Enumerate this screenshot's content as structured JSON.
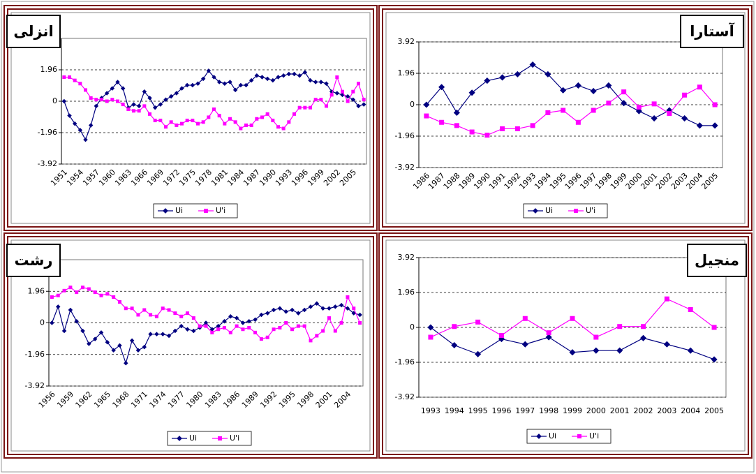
{
  "chart_data": [
    {
      "type": "line",
      "title": "انزلی",
      "categories": [
        "1951",
        null,
        null,
        "1954",
        null,
        null,
        "1957",
        null,
        null,
        "1960",
        null,
        null,
        "1963",
        null,
        null,
        "1966",
        null,
        null,
        "1969",
        null,
        null,
        "1972",
        null,
        null,
        "1975",
        null,
        null,
        "1978",
        null,
        null,
        "1981",
        null,
        null,
        "1984",
        null,
        null,
        "1987",
        null,
        null,
        "1990",
        null,
        null,
        "1993",
        null,
        null,
        "1996",
        null,
        null,
        "1999",
        null,
        null,
        "2002",
        null,
        null,
        "2005",
        null,
        null
      ],
      "series": [
        {
          "name": "Ui",
          "color": "#000080",
          "values": [
            0,
            -0.9,
            -1.4,
            -1.8,
            -2.4,
            -1.5,
            -0.3,
            0.2,
            0.5,
            0.8,
            1.2,
            0.8,
            -0.4,
            -0.2,
            -0.3,
            0.6,
            0.2,
            -0.4,
            -0.2,
            0.1,
            0.3,
            0.5,
            0.8,
            1.0,
            1.0,
            1.1,
            1.4,
            1.9,
            1.5,
            1.2,
            1.1,
            1.2,
            0.7,
            1.0,
            1.0,
            1.3,
            1.6,
            1.5,
            1.4,
            1.3,
            1.5,
            1.6,
            1.7,
            1.7,
            1.6,
            1.8,
            1.3,
            1.2,
            1.2,
            1.1,
            0.6,
            0.5,
            0.4,
            0.3,
            0.1,
            -0.3,
            -0.2
          ]
        },
        {
          "name": "U'i",
          "color": "#ff00ff",
          "values": [
            1.5,
            1.5,
            1.3,
            1.1,
            0.7,
            0.2,
            0.1,
            0.1,
            0.0,
            0.1,
            0.0,
            -0.2,
            -0.5,
            -0.6,
            -0.6,
            -0.3,
            -0.8,
            -1.2,
            -1.2,
            -1.6,
            -1.3,
            -1.5,
            -1.4,
            -1.2,
            -1.2,
            -1.4,
            -1.3,
            -1.0,
            -0.5,
            -0.9,
            -1.4,
            -1.1,
            -1.3,
            -1.7,
            -1.5,
            -1.5,
            -1.1,
            -1.0,
            -0.8,
            -1.2,
            -1.6,
            -1.7,
            -1.3,
            -0.8,
            -0.4,
            -0.4,
            -0.4,
            0.1,
            0.1,
            -0.3,
            0.4,
            1.5,
            0.6,
            0.0,
            0.6,
            1.1,
            0.1
          ]
        }
      ],
      "ylim": [
        -3.92,
        3.92
      ],
      "yticks": [
        -3.92,
        -1.96,
        0,
        1.96
      ]
    },
    {
      "type": "line",
      "title": "آستارا",
      "categories": [
        "1986",
        "1987",
        "1988",
        "1989",
        "1990",
        "1991",
        "1992",
        "1993",
        "1994",
        "1995",
        "1996",
        "1997",
        "1998",
        "1999",
        "2000",
        "2001",
        "2002",
        "2003",
        "2004",
        "2005"
      ],
      "series": [
        {
          "name": "Ui",
          "color": "#000080",
          "values": [
            0,
            1.1,
            -0.5,
            0.75,
            1.5,
            1.7,
            1.9,
            2.5,
            1.9,
            0.9,
            1.2,
            0.85,
            1.2,
            0.1,
            -0.4,
            -0.85,
            -0.35,
            -0.85,
            -1.3,
            -1.3
          ]
        },
        {
          "name": "U'i",
          "color": "#ff00ff",
          "values": [
            -0.7,
            -1.1,
            -1.3,
            -1.7,
            -1.9,
            -1.5,
            -1.5,
            -1.3,
            -0.5,
            -0.35,
            -1.1,
            -0.35,
            0.1,
            0.8,
            -0.15,
            0.05,
            -0.55,
            0.6,
            1.1,
            0.0
          ]
        }
      ],
      "ylim": [
        -3.92,
        3.92
      ],
      "yticks": [
        -3.92,
        -1.96,
        0,
        1.96,
        3.92
      ]
    },
    {
      "type": "line",
      "title": "رشت",
      "categories": [
        "1956",
        null,
        null,
        "1959",
        null,
        null,
        "1962",
        null,
        null,
        "1965",
        null,
        null,
        "1968",
        null,
        null,
        "1971",
        null,
        null,
        "1974",
        null,
        null,
        "1977",
        null,
        null,
        "1980",
        null,
        null,
        "1983",
        null,
        null,
        "1986",
        null,
        null,
        "1989",
        null,
        null,
        "1992",
        null,
        null,
        "1995",
        null,
        null,
        "1998",
        null,
        null,
        "2001",
        null,
        null,
        "2004",
        null,
        null
      ],
      "series": [
        {
          "name": "Ui",
          "color": "#000080",
          "values": [
            0,
            1.0,
            -0.5,
            0.8,
            0.1,
            -0.5,
            -1.3,
            -1.0,
            -0.6,
            -1.2,
            -1.7,
            -1.4,
            -2.5,
            -1.1,
            -1.7,
            -1.5,
            -0.7,
            -0.7,
            -0.7,
            -0.8,
            -0.5,
            -0.2,
            -0.4,
            -0.5,
            -0.3,
            0.0,
            -0.4,
            -0.2,
            0.1,
            0.4,
            0.3,
            0.0,
            0.1,
            0.2,
            0.5,
            0.6,
            0.8,
            0.9,
            0.7,
            0.8,
            0.6,
            0.8,
            1.0,
            1.2,
            0.9,
            0.9,
            1.0,
            1.1,
            0.9,
            0.6,
            0.5
          ]
        },
        {
          "name": "U'i",
          "color": "#ff00ff",
          "values": [
            1.6,
            1.7,
            2.0,
            2.2,
            1.9,
            2.2,
            2.1,
            1.9,
            1.7,
            1.8,
            1.6,
            1.3,
            0.9,
            0.9,
            0.5,
            0.8,
            0.5,
            0.4,
            0.9,
            0.8,
            0.6,
            0.4,
            0.6,
            0.3,
            -0.2,
            -0.2,
            -0.6,
            -0.4,
            -0.3,
            -0.6,
            -0.2,
            -0.4,
            -0.3,
            -0.6,
            -1.0,
            -0.9,
            -0.4,
            -0.3,
            0.0,
            -0.4,
            -0.2,
            -0.2,
            -1.1,
            -0.8,
            -0.5,
            0.3,
            -0.5,
            0.0,
            1.6,
            0.9,
            0.0
          ]
        }
      ],
      "ylim": [
        -3.92,
        3.92
      ],
      "yticks": [
        -3.92,
        -1.96,
        0,
        1.96
      ]
    },
    {
      "type": "line",
      "title": "منجیل",
      "categories": [
        "1993",
        "1994",
        "1995",
        "1996",
        "1997",
        "1998",
        "1999",
        "2000",
        "2001",
        "2002",
        "2003",
        "2004",
        "2005"
      ],
      "series": [
        {
          "name": "Ui",
          "color": "#000080",
          "values": [
            0,
            -1.0,
            -1.5,
            -0.65,
            -0.95,
            -0.55,
            -1.4,
            -1.3,
            -1.3,
            -0.6,
            -0.95,
            -1.3,
            -1.8
          ]
        },
        {
          "name": "U'i",
          "color": "#ff00ff",
          "values": [
            -0.55,
            0.05,
            0.3,
            -0.45,
            0.5,
            -0.3,
            0.5,
            -0.55,
            0.05,
            0.05,
            1.6,
            1.0,
            0.0
          ]
        }
      ],
      "ylim": [
        -3.92,
        3.92
      ],
      "yticks": [
        -3.92,
        -1.96,
        0,
        1.96,
        3.92
      ]
    }
  ]
}
